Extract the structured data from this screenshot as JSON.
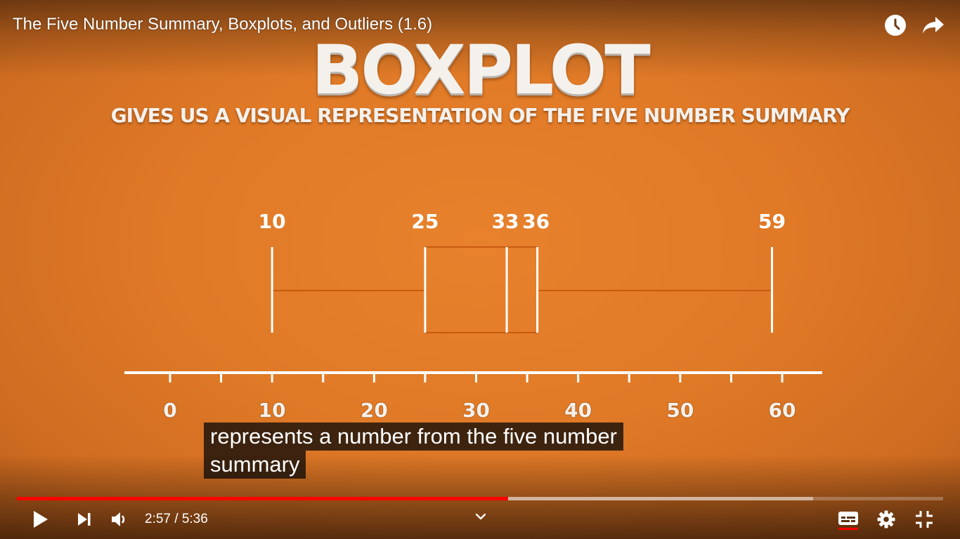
{
  "player": {
    "title": "The Five Number Summary, Boxplots, and Outliers (1.6)",
    "current_time": "2:57",
    "time_separator": " / ",
    "duration": "5:36",
    "progress_played_pct": 53,
    "progress_buffered_pct": 86,
    "progress_color": "#ff0000",
    "subtitles_active_color": "#ff0000"
  },
  "slide": {
    "heading": "BOXPLOT",
    "subheading": "GIVES US A VISUAL REPRESENTATION OF THE FIVE NUMBER SUMMARY"
  },
  "captions": {
    "line1": "represents a number from the five number",
    "line2": "summary"
  },
  "icons": {
    "watch_later": "clock-icon",
    "share": "share-arrow-icon",
    "play": "play-icon",
    "next": "skip-next-icon",
    "volume": "volume-icon",
    "chapters": "chevron-down-icon",
    "subtitles": "subtitles-icon",
    "settings": "gear-icon",
    "exit_fullscreen": "exit-fullscreen-icon"
  },
  "chart_data": {
    "type": "boxplot",
    "five_number_summary": {
      "min": 10,
      "q1": 25,
      "median": 33,
      "q3": 36,
      "max": 59
    },
    "value_labels": [
      "10",
      "25",
      "33",
      "36",
      "59"
    ],
    "axis": {
      "min": -5,
      "max": 65,
      "ticks": [
        0,
        5,
        10,
        15,
        20,
        25,
        30,
        35,
        40,
        45,
        50,
        55,
        60
      ],
      "tick_labels": [
        "0",
        "10",
        "20",
        "30",
        "40",
        "50",
        "60"
      ]
    },
    "colors": {
      "lines": "#ffffff",
      "box": "#c85a10"
    }
  }
}
